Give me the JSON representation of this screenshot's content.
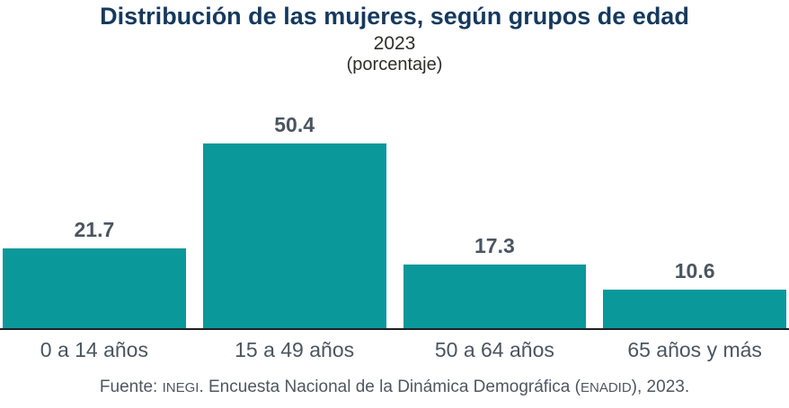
{
  "chart_data": {
    "type": "bar",
    "title": "Distribución de las mujeres, según grupos de edad",
    "subtitle_year": "2023",
    "subtitle_unit": "(porcentaje)",
    "categories": [
      "0 a 14 años",
      "15 a 49 años",
      "50 a 64 años",
      "65 años y más"
    ],
    "values": [
      21.7,
      50.4,
      17.3,
      10.6
    ],
    "ylim": [
      0,
      55
    ],
    "grid": false,
    "legend": false,
    "value_label_position": "above-bar"
  },
  "source": {
    "prefix": "Fuente: ",
    "inegi": "INEGI",
    "mid": ". Encuesta Nacional de la Dinámica Demográfica (",
    "enadid": "ENADID",
    "suffix": "), 2023."
  },
  "colors": {
    "bar": "#0A989B",
    "title": "#15395E",
    "labels": "#4A5560",
    "subtitle": "#2E2E2B",
    "axis_line": "#1F1F1F",
    "source_text": "#4E5760"
  }
}
